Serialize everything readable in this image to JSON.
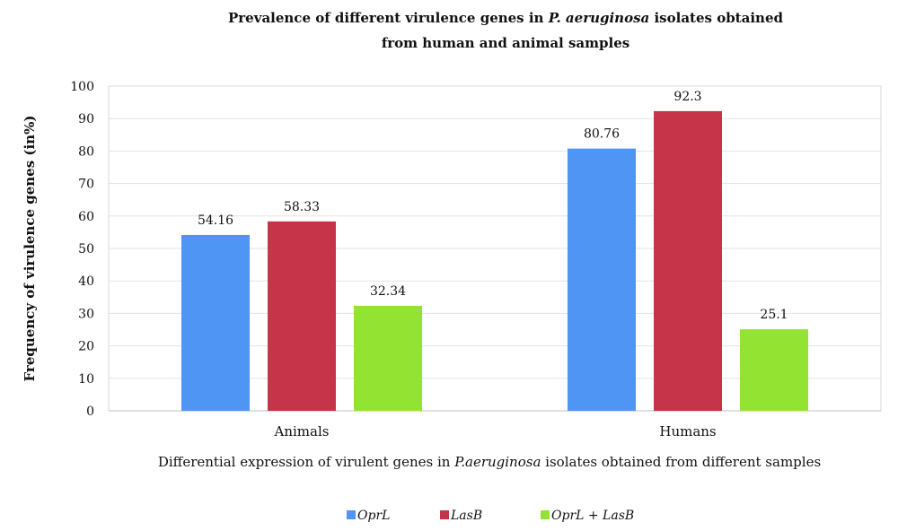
{
  "chart_data": {
    "type": "bar",
    "title_line1_pre": "Prevalence of different virulence genes in ",
    "title_line1_italic": "P. aeruginosa",
    "title_line1_post": " isolates obtained",
    "title_line2": "from human and animal samples",
    "ylabel": "Frequency of virulence genes (in%)",
    "xlabel_pre": "Differential expression of virulent genes in ",
    "xlabel_italic": "P.aeruginosa",
    "xlabel_post": " isolates obtained from different samples",
    "categories": [
      "Animals",
      "Humans"
    ],
    "series": [
      {
        "name": "OprL",
        "color": "#4f95f4",
        "values": [
          54.16,
          80.76
        ]
      },
      {
        "name": "LasB",
        "color": "#c6344a",
        "values": [
          58.33,
          92.3
        ]
      },
      {
        "name": "OprL + LasB",
        "color": "#93e332",
        "values": [
          32.34,
          25.1
        ]
      }
    ],
    "ylim": [
      0,
      100
    ],
    "yticks": [
      0,
      10,
      20,
      30,
      40,
      50,
      60,
      70,
      80,
      90,
      100
    ],
    "grid": true,
    "legend_position": "bottom"
  }
}
